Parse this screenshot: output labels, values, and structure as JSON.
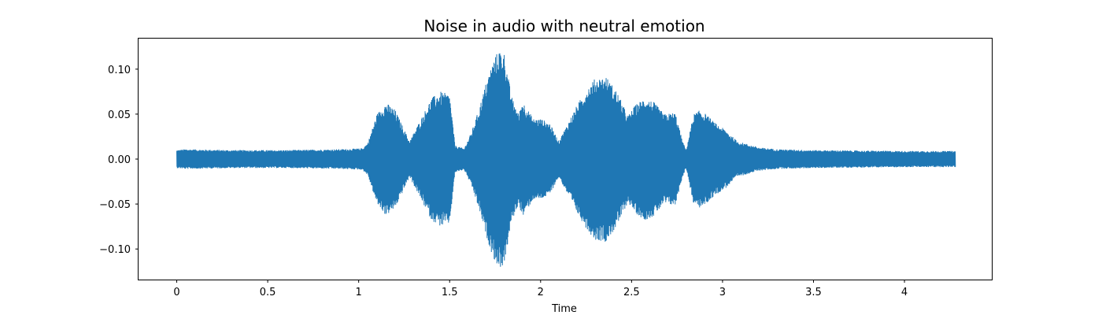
{
  "chart_data": {
    "type": "line",
    "title": "Noise in audio with neutral emotion",
    "xlabel": "Time",
    "ylabel": "",
    "xlim": [
      -0.21,
      4.48
    ],
    "ylim": [
      -0.134,
      0.134
    ],
    "x_ticks": [
      0,
      0.5,
      1,
      1.5,
      2,
      2.5,
      3,
      3.5,
      4
    ],
    "x_tick_labels": [
      "0",
      "0.5",
      "1",
      "1.5",
      "2",
      "2.5",
      "3",
      "3.5",
      "4"
    ],
    "y_ticks": [
      -0.1,
      -0.05,
      0.0,
      0.05,
      0.1
    ],
    "y_tick_labels": [
      "−0.10",
      "−0.05",
      "0.00",
      "0.05",
      "0.10"
    ],
    "grid": false,
    "legend": "none",
    "line_color": "#1f77b4",
    "series": [
      {
        "duration": 4.28,
        "envelope_time": [
          0.0,
          0.05,
          0.3,
          0.6,
          0.9,
          1.02,
          1.05,
          1.1,
          1.15,
          1.2,
          1.28,
          1.35,
          1.4,
          1.45,
          1.5,
          1.53,
          1.58,
          1.62,
          1.66,
          1.7,
          1.74,
          1.77,
          1.8,
          1.84,
          1.88,
          1.9,
          1.96,
          2.0,
          2.05,
          2.1,
          2.2,
          2.26,
          2.3,
          2.36,
          2.42,
          2.48,
          2.52,
          2.57,
          2.62,
          2.68,
          2.74,
          2.78,
          2.8,
          2.84,
          2.88,
          2.92,
          2.96,
          3.02,
          3.08,
          3.2,
          3.3,
          3.5,
          4.0,
          4.28
        ],
        "envelope_amplitude": [
          0.01,
          0.011,
          0.01,
          0.01,
          0.011,
          0.012,
          0.018,
          0.05,
          0.063,
          0.055,
          0.02,
          0.048,
          0.068,
          0.075,
          0.072,
          0.015,
          0.012,
          0.03,
          0.055,
          0.085,
          0.11,
          0.122,
          0.118,
          0.07,
          0.05,
          0.065,
          0.045,
          0.045,
          0.04,
          0.02,
          0.06,
          0.08,
          0.09,
          0.092,
          0.075,
          0.048,
          0.06,
          0.068,
          0.064,
          0.05,
          0.052,
          0.02,
          0.01,
          0.05,
          0.055,
          0.048,
          0.04,
          0.032,
          0.02,
          0.013,
          0.011,
          0.01,
          0.009,
          0.009
        ]
      }
    ]
  }
}
